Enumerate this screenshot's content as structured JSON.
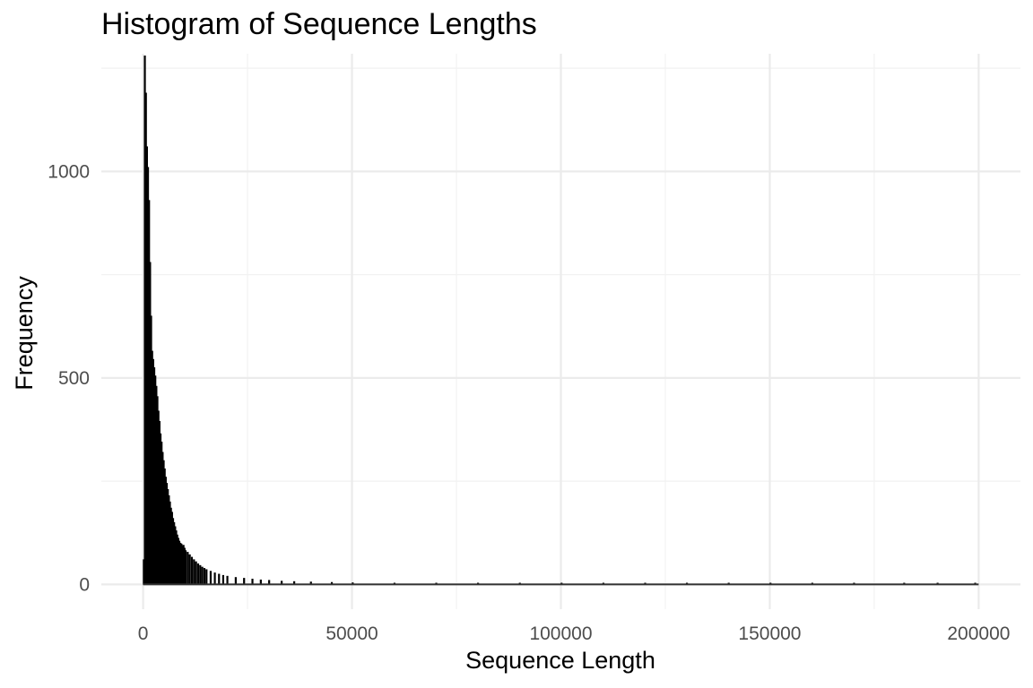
{
  "chart_data": {
    "type": "bar",
    "title": "Histogram of Sequence Lengths",
    "xlabel": "Sequence Length",
    "ylabel": "Frequency",
    "xlim": [
      -10000,
      210000
    ],
    "ylim": [
      -60,
      1285
    ],
    "x_ticks": [
      0,
      50000,
      100000,
      150000,
      200000
    ],
    "x_tick_labels": [
      "0",
      "50000",
      "100000",
      "150000",
      "200000"
    ],
    "y_ticks": [
      0,
      500,
      1000
    ],
    "y_tick_labels": [
      "0",
      "500",
      "1000"
    ],
    "grid": true,
    "legend": "none",
    "bar_color": "#000000",
    "bin_width": 250,
    "bins": [
      [
        0,
        60
      ],
      [
        250,
        1280
      ],
      [
        500,
        1190
      ],
      [
        750,
        1060
      ],
      [
        1000,
        1010
      ],
      [
        1250,
        930
      ],
      [
        1500,
        780
      ],
      [
        1750,
        650
      ],
      [
        2000,
        565
      ],
      [
        2250,
        545
      ],
      [
        2500,
        525
      ],
      [
        2750,
        505
      ],
      [
        3000,
        480
      ],
      [
        3250,
        455
      ],
      [
        3500,
        420
      ],
      [
        3750,
        395
      ],
      [
        4000,
        365
      ],
      [
        4250,
        345
      ],
      [
        4500,
        320
      ],
      [
        4750,
        300
      ],
      [
        5000,
        280
      ],
      [
        5250,
        260
      ],
      [
        5500,
        245
      ],
      [
        5750,
        230
      ],
      [
        6000,
        215
      ],
      [
        6250,
        200
      ],
      [
        6500,
        185
      ],
      [
        6750,
        175
      ],
      [
        7000,
        160
      ],
      [
        7250,
        150
      ],
      [
        7500,
        140
      ],
      [
        7750,
        130
      ],
      [
        8000,
        120
      ],
      [
        8250,
        112
      ],
      [
        8500,
        105
      ],
      [
        8750,
        100
      ],
      [
        9000,
        98
      ],
      [
        9250,
        92
      ],
      [
        9500,
        95
      ],
      [
        9750,
        88
      ],
      [
        10000,
        82
      ],
      [
        10500,
        78
      ],
      [
        11000,
        72
      ],
      [
        11500,
        66
      ],
      [
        12000,
        60
      ],
      [
        12500,
        55
      ],
      [
        13000,
        50
      ],
      [
        13500,
        46
      ],
      [
        14000,
        42
      ],
      [
        14500,
        39
      ],
      [
        15000,
        36
      ],
      [
        16000,
        32
      ],
      [
        17000,
        28
      ],
      [
        18000,
        25
      ],
      [
        19000,
        22
      ],
      [
        20000,
        20
      ],
      [
        22000,
        17
      ],
      [
        24000,
        15
      ],
      [
        26000,
        13
      ],
      [
        28000,
        11
      ],
      [
        30000,
        10
      ],
      [
        33000,
        8
      ],
      [
        36000,
        7
      ],
      [
        40000,
        6
      ],
      [
        45000,
        5
      ],
      [
        50000,
        4
      ],
      [
        60000,
        3
      ],
      [
        70000,
        3
      ],
      [
        80000,
        2
      ],
      [
        90000,
        2
      ],
      [
        100000,
        2
      ],
      [
        110000,
        1
      ],
      [
        120000,
        1
      ],
      [
        130000,
        1
      ],
      [
        140000,
        1
      ],
      [
        150000,
        1
      ],
      [
        160000,
        1
      ],
      [
        170000,
        1
      ],
      [
        182000,
        1
      ],
      [
        190000,
        1
      ],
      [
        199000,
        1
      ]
    ]
  }
}
